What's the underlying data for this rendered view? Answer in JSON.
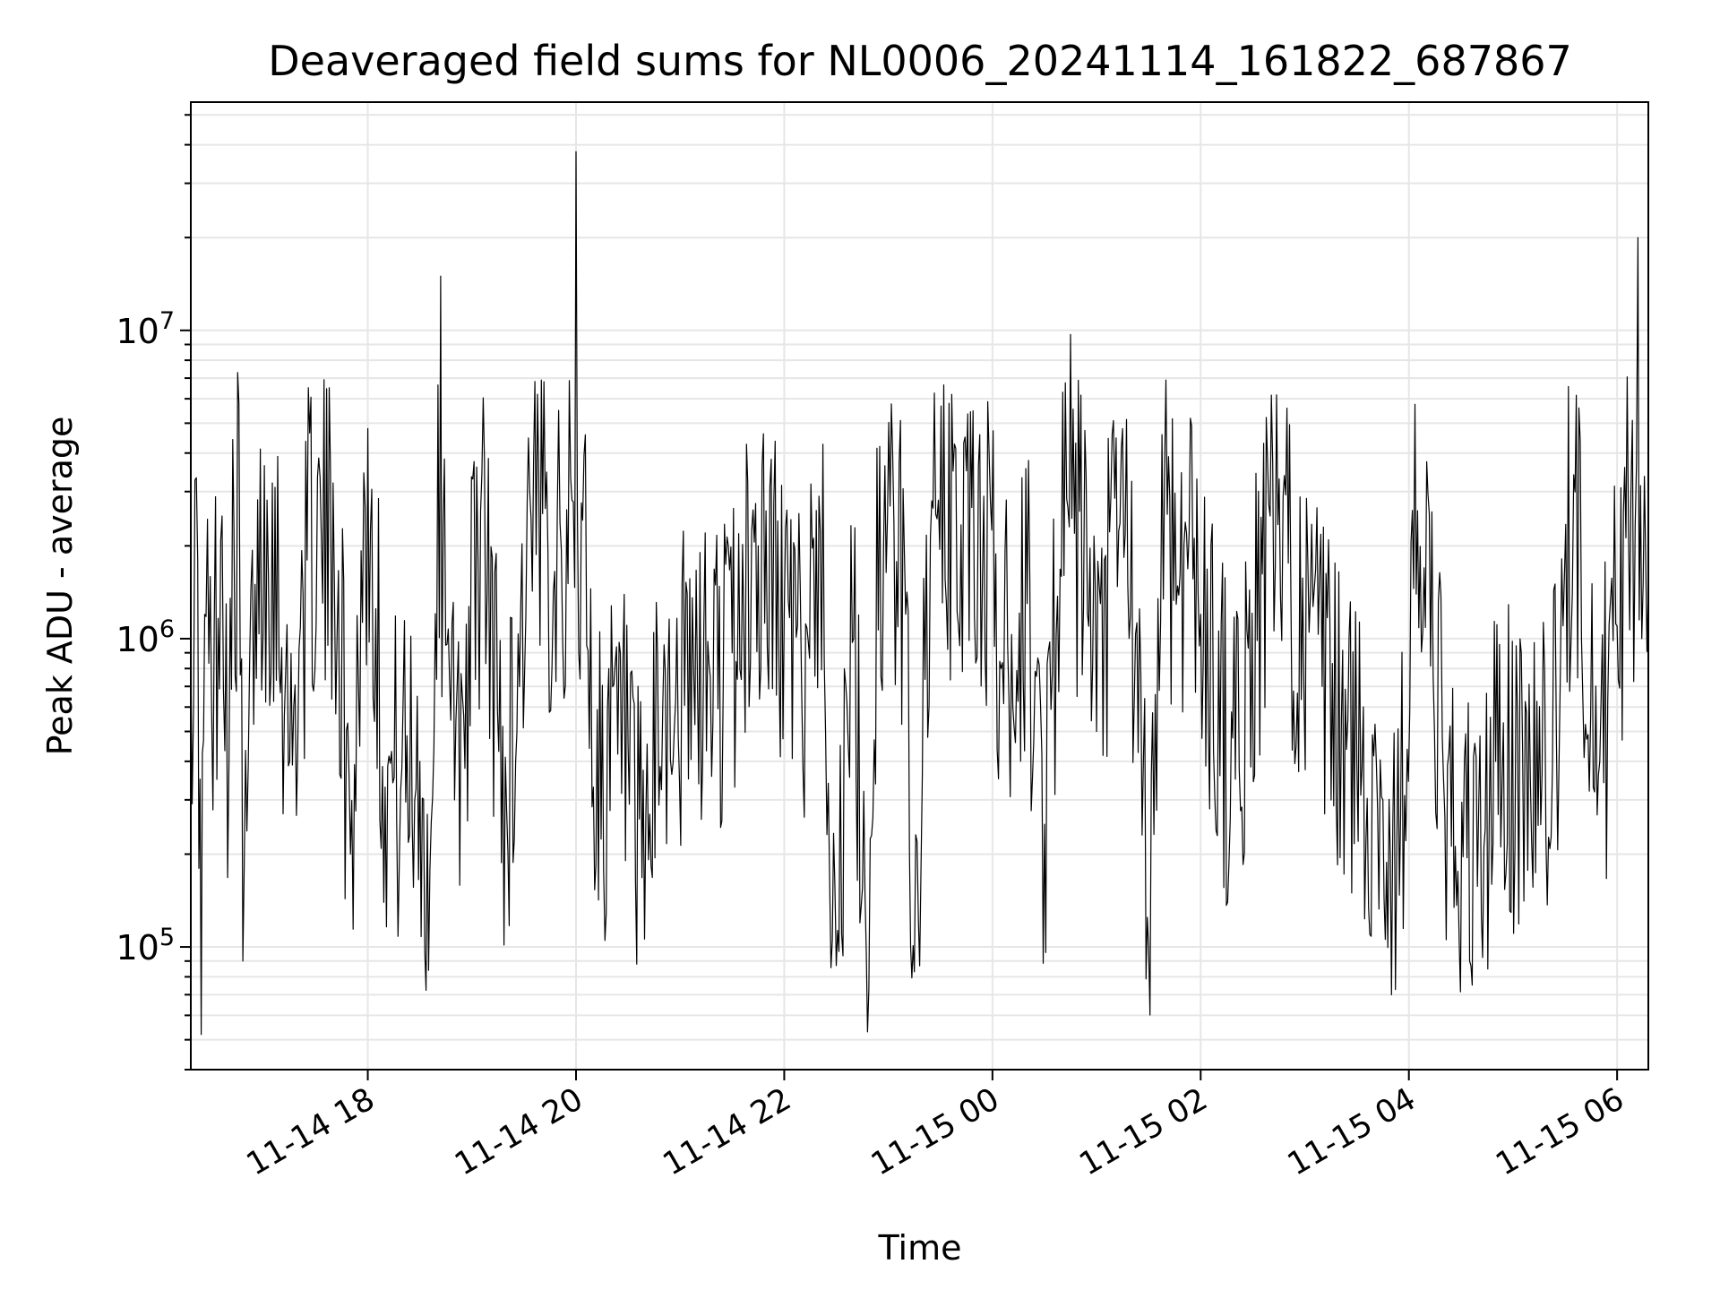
{
  "chart_data": {
    "type": "line",
    "title": "Deaveraged field sums for NL0006_20241114_161822_687867",
    "xlabel": "Time",
    "ylabel": "Peak ADU - average",
    "yscale": "log",
    "grid": true,
    "xlim": [
      "2024-11-14 16:18",
      "2024-11-15 06:18"
    ],
    "ylim": [
      40000,
      55000000
    ],
    "x_ticks": [
      {
        "value": "2024-11-14 18:00",
        "label": "11-14 18"
      },
      {
        "value": "2024-11-14 20:00",
        "label": "11-14 20"
      },
      {
        "value": "2024-11-14 22:00",
        "label": "11-14 22"
      },
      {
        "value": "2024-11-15 00:00",
        "label": "11-15 00"
      },
      {
        "value": "2024-11-15 02:00",
        "label": "11-15 02"
      },
      {
        "value": "2024-11-15 04:00",
        "label": "11-15 04"
      },
      {
        "value": "2024-11-15 06:00",
        "label": "11-15 06"
      }
    ],
    "y_ticks": [
      {
        "value": 100000,
        "base": "10",
        "exp": "5"
      },
      {
        "value": 1000000,
        "base": "10",
        "exp": "6"
      },
      {
        "value": 10000000,
        "base": "10",
        "exp": "7"
      }
    ],
    "series": [
      {
        "color": "#000000",
        "points": [
          [
            "2024-11-14 16:18",
            900000
          ],
          [
            "2024-11-14 16:22",
            1800000
          ],
          [
            "2024-11-14 16:24",
            52000
          ],
          [
            "2024-11-14 16:26",
            1200000
          ],
          [
            "2024-11-14 16:30",
            600000
          ],
          [
            "2024-11-14 16:36",
            2500000
          ],
          [
            "2024-11-14 16:40",
            400000
          ],
          [
            "2024-11-14 16:45",
            7300000
          ],
          [
            "2024-11-14 16:48",
            90000
          ],
          [
            "2024-11-14 16:55",
            1500000
          ],
          [
            "2024-11-14 17:05",
            3200000
          ],
          [
            "2024-11-14 17:15",
            400000
          ],
          [
            "2024-11-14 17:25",
            1800000
          ],
          [
            "2024-11-14 17:40",
            3200000
          ],
          [
            "2024-11-14 17:50",
            200000
          ],
          [
            "2024-11-14 18:00",
            4800000
          ],
          [
            "2024-11-14 18:10",
            330000
          ],
          [
            "2024-11-14 18:30",
            400000
          ],
          [
            "2024-11-14 18:35",
            84000
          ],
          [
            "2024-11-14 18:42",
            15000000
          ],
          [
            "2024-11-14 18:50",
            300000
          ],
          [
            "2024-11-14 19:05",
            2600000
          ],
          [
            "2024-11-14 19:20",
            280000
          ],
          [
            "2024-11-14 19:40",
            6900000
          ],
          [
            "2024-11-14 19:50",
            5500000
          ],
          [
            "2024-11-14 20:00",
            38000000
          ],
          [
            "2024-11-14 20:10",
            330000
          ],
          [
            "2024-11-14 20:30",
            450000
          ],
          [
            "2024-11-14 20:35",
            88000
          ],
          [
            "2024-11-14 20:50",
            600000
          ],
          [
            "2024-11-14 21:10",
            700000
          ],
          [
            "2024-11-14 21:30",
            900000
          ],
          [
            "2024-11-14 21:45",
            2000000
          ],
          [
            "2024-11-14 22:00",
            1200000
          ],
          [
            "2024-11-14 22:10",
            700000
          ],
          [
            "2024-11-14 22:20",
            2900000
          ],
          [
            "2024-11-14 22:30",
            87000
          ],
          [
            "2024-11-14 22:40",
            1000000
          ],
          [
            "2024-11-14 22:48",
            53000
          ],
          [
            "2024-11-14 22:55",
            4200000
          ],
          [
            "2024-11-14 23:10",
            1200000
          ],
          [
            "2024-11-14 23:15",
            83000
          ],
          [
            "2024-11-14 23:25",
            2800000
          ],
          [
            "2024-11-14 23:35",
            5800000
          ],
          [
            "2024-11-14 23:45",
            3500000
          ],
          [
            "2024-11-14 23:55",
            2900000
          ],
          [
            "2024-11-15 00:05",
            800000
          ],
          [
            "2024-11-15 00:20",
            1300000
          ],
          [
            "2024-11-15 00:30",
            250000
          ],
          [
            "2024-11-15 00:45",
            9700000
          ],
          [
            "2024-11-15 01:00",
            500000
          ],
          [
            "2024-11-15 01:15",
            4800000
          ],
          [
            "2024-11-15 01:30",
            100000
          ],
          [
            "2024-11-15 01:40",
            6900000
          ],
          [
            "2024-11-15 02:00",
            1200000
          ],
          [
            "2024-11-15 02:20",
            350000
          ],
          [
            "2024-11-15 02:40",
            2500000
          ],
          [
            "2024-11-15 03:10",
            700000
          ],
          [
            "2024-11-15 03:30",
            400000
          ],
          [
            "2024-11-15 03:45",
            300000
          ],
          [
            "2024-11-15 03:50",
            70000
          ],
          [
            "2024-11-15 04:05",
            2600000
          ],
          [
            "2024-11-15 04:20",
            350000
          ],
          [
            "2024-11-15 04:35",
            90000
          ],
          [
            "2024-11-15 04:50",
            400000
          ],
          [
            "2024-11-15 05:10",
            350000
          ],
          [
            "2024-11-15 05:25",
            500000
          ],
          [
            "2024-11-15 05:35",
            3400000
          ],
          [
            "2024-11-15 05:50",
            400000
          ],
          [
            "2024-11-15 06:00",
            1100000
          ],
          [
            "2024-11-15 06:08",
            3000000
          ],
          [
            "2024-11-15 06:12",
            20000000
          ],
          [
            "2024-11-15 06:18",
            1500000
          ]
        ]
      }
    ]
  }
}
